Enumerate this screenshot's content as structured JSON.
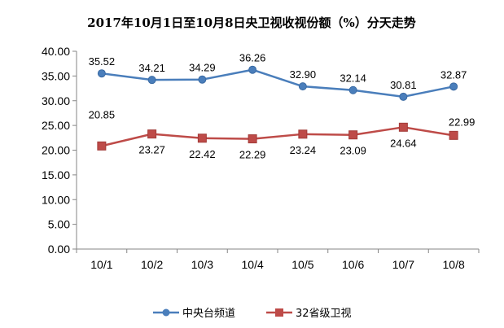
{
  "chart_data": {
    "type": "line",
    "title": "2017年10月1日至10月8日央卫视收视份额（%）分天走势",
    "xlabel": "",
    "ylabel": "",
    "categories": [
      "10/1",
      "10/2",
      "10/3",
      "10/4",
      "10/5",
      "10/6",
      "10/7",
      "10/8"
    ],
    "ylim": [
      0,
      40
    ],
    "yticks": [
      "0.00",
      "5.00",
      "10.00",
      "15.00",
      "20.00",
      "25.00",
      "30.00",
      "35.00",
      "40.00"
    ],
    "grid": false,
    "legend_position": "bottom",
    "series": [
      {
        "name": "中央台频道",
        "color": "#4a7ebb",
        "marker": "circle",
        "values": [
          35.52,
          34.21,
          34.29,
          36.26,
          32.9,
          32.14,
          30.81,
          32.87
        ],
        "labels": [
          "35.52",
          "34.21",
          "34.29",
          "36.26",
          "32.90",
          "32.14",
          "30.81",
          "32.87"
        ]
      },
      {
        "name": "32省级卫视",
        "color": "#be4b48",
        "marker": "square",
        "values": [
          20.85,
          23.27,
          22.42,
          22.29,
          23.24,
          23.09,
          24.64,
          22.99
        ],
        "labels": [
          "20.85",
          "23.27",
          "22.42",
          "22.29",
          "23.24",
          "23.09",
          "24.64",
          "22.99"
        ]
      }
    ]
  }
}
